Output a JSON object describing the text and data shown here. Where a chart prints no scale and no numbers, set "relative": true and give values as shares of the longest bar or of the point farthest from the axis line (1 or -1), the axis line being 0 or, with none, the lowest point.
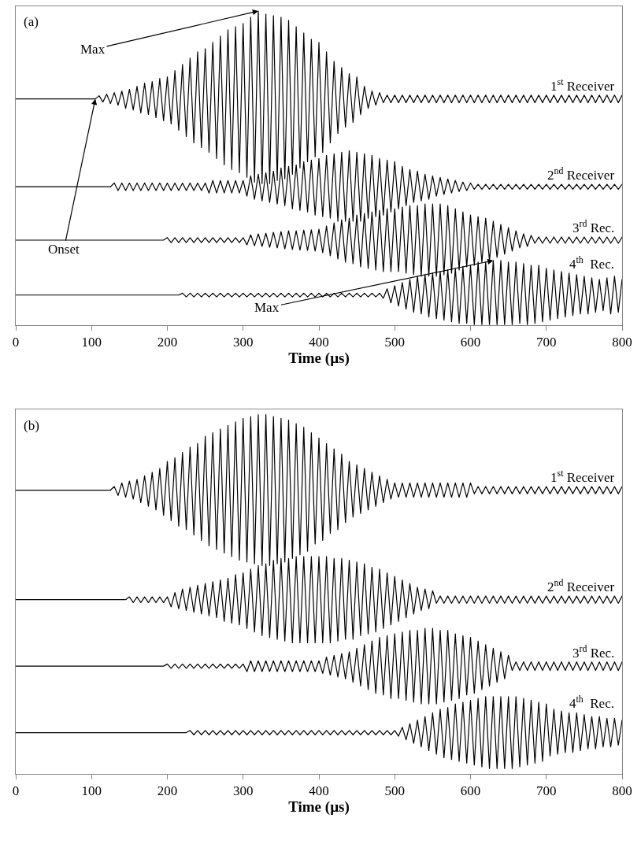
{
  "chart_data": [
    {
      "type": "line",
      "relative": true,
      "xlabel": "Time (µs)",
      "xlim": [
        0,
        800
      ],
      "xticks": [
        0,
        100,
        200,
        300,
        400,
        500,
        600,
        700,
        800
      ],
      "x": [
        0,
        100,
        105,
        110,
        115,
        120,
        125,
        130,
        135,
        140,
        145,
        150,
        155,
        160,
        165,
        170,
        175,
        180,
        185,
        190,
        195,
        200,
        205,
        210,
        215,
        220,
        225,
        230,
        235,
        240,
        245,
        250,
        255,
        260,
        265,
        270,
        275,
        280,
        285,
        290,
        295,
        300,
        305,
        310,
        315,
        320,
        325,
        330,
        335,
        340,
        345,
        350,
        355,
        360,
        365,
        370,
        375,
        380,
        385,
        390,
        395,
        400,
        405,
        410,
        415,
        420,
        425,
        430,
        435,
        440,
        445,
        450,
        455,
        460,
        465,
        470,
        475,
        480,
        485,
        490,
        495,
        500,
        505,
        510,
        515,
        520,
        525,
        530,
        535,
        540,
        545,
        550,
        555,
        560,
        565,
        570,
        575,
        580,
        585,
        590,
        595,
        600,
        605,
        610,
        615,
        620,
        625,
        630,
        635,
        640,
        645,
        650,
        655,
        660,
        665,
        670,
        675,
        680,
        685,
        690,
        695,
        700,
        705,
        710,
        715,
        720,
        725,
        730,
        735,
        740,
        745,
        750,
        755,
        760,
        765,
        770,
        775,
        780,
        785,
        790,
        795,
        800
      ],
      "annotations": [
        "(a)",
        {
          "text": "Max",
          "x": 320,
          "y": 1.0
        },
        {
          "text": "Onset",
          "x": 105,
          "y": 0.72
        },
        {
          "text": "Max",
          "x": 630,
          "y": 0.205
        }
      ],
      "series": [
        {
          "name": "1$^{st}$ Receiver",
          "color": "#000000",
          "values": [
            0.72,
            0.72,
            0.72,
            0.73,
            0.71,
            0.735,
            0.705,
            0.74,
            0.7,
            0.745,
            0.69,
            0.75,
            0.685,
            0.76,
            0.675,
            0.77,
            0.67,
            0.775,
            0.66,
            0.785,
            0.65,
            0.79,
            0.64,
            0.81,
            0.62,
            0.83,
            0.6,
            0.85,
            0.58,
            0.87,
            0.565,
            0.88,
            0.55,
            0.9,
            0.53,
            0.92,
            0.51,
            0.94,
            0.495,
            0.95,
            0.485,
            0.96,
            0.47,
            0.98,
            0.455,
            1.0,
            0.45,
            0.99,
            0.45,
            0.985,
            0.46,
            0.98,
            0.465,
            0.97,
            0.48,
            0.95,
            0.5,
            0.93,
            0.52,
            0.91,
            0.535,
            0.9,
            0.55,
            0.87,
            0.58,
            0.84,
            0.61,
            0.82,
            0.63,
            0.8,
            0.645,
            0.79,
            0.67,
            0.76,
            0.69,
            0.745,
            0.7,
            0.74,
            0.708,
            0.732,
            0.708,
            0.732,
            0.708,
            0.732,
            0.708,
            0.732,
            0.708,
            0.732,
            0.708,
            0.732,
            0.708,
            0.732,
            0.708,
            0.732,
            0.708,
            0.732,
            0.708,
            0.732,
            0.708,
            0.732,
            0.708,
            0.732,
            0.708,
            0.732,
            0.708,
            0.732,
            0.708,
            0.732,
            0.708,
            0.732,
            0.708,
            0.732,
            0.708,
            0.732,
            0.708,
            0.732,
            0.708,
            0.732,
            0.708,
            0.732,
            0.708,
            0.732,
            0.708,
            0.732,
            0.708,
            0.732,
            0.708,
            0.732,
            0.708,
            0.732,
            0.708,
            0.732,
            0.708,
            0.732,
            0.708,
            0.732,
            0.708,
            0.732,
            0.708,
            0.732,
            0.708,
            0.732
          ]
        },
        {
          "name": "2$^{nd}$ Receiver",
          "color": "#000000",
          "values": [
            0.44,
            0.44,
            0.44,
            0.44,
            0.44,
            0.44,
            0.44,
            0.452,
            0.428,
            0.452,
            0.428,
            0.452,
            0.428,
            0.452,
            0.428,
            0.452,
            0.428,
            0.452,
            0.428,
            0.452,
            0.428,
            0.452,
            0.428,
            0.452,
            0.428,
            0.452,
            0.428,
            0.452,
            0.428,
            0.452,
            0.428,
            0.452,
            0.42,
            0.46,
            0.42,
            0.46,
            0.42,
            0.46,
            0.42,
            0.46,
            0.42,
            0.46,
            0.41,
            0.475,
            0.4,
            0.48,
            0.395,
            0.485,
            0.39,
            0.49,
            0.385,
            0.5,
            0.38,
            0.505,
            0.37,
            0.51,
            0.365,
            0.52,
            0.36,
            0.525,
            0.35,
            0.53,
            0.345,
            0.54,
            0.34,
            0.545,
            0.33,
            0.55,
            0.33,
            0.555,
            0.33,
            0.55,
            0.33,
            0.545,
            0.34,
            0.54,
            0.345,
            0.53,
            0.35,
            0.525,
            0.36,
            0.52,
            0.37,
            0.505,
            0.38,
            0.495,
            0.39,
            0.49,
            0.395,
            0.48,
            0.4,
            0.475,
            0.41,
            0.47,
            0.415,
            0.465,
            0.42,
            0.46,
            0.425,
            0.455,
            0.428,
            0.452,
            0.432,
            0.448,
            0.432,
            0.448,
            0.432,
            0.448,
            0.432,
            0.448,
            0.432,
            0.448,
            0.432,
            0.448,
            0.432,
            0.448,
            0.432,
            0.448,
            0.432,
            0.448,
            0.432,
            0.448,
            0.432,
            0.448,
            0.432,
            0.448,
            0.432,
            0.448,
            0.432,
            0.448,
            0.432,
            0.448,
            0.432,
            0.448,
            0.432,
            0.448,
            0.432,
            0.448,
            0.432,
            0.448,
            0.432,
            0.448
          ]
        },
        {
          "name": "3$^{rd}$ Rec.",
          "color": "#000000",
          "values": [
            0.27,
            0.27,
            0.27,
            0.27,
            0.27,
            0.27,
            0.27,
            0.27,
            0.27,
            0.27,
            0.27,
            0.27,
            0.27,
            0.27,
            0.27,
            0.27,
            0.27,
            0.27,
            0.27,
            0.27,
            0.27,
            0.278,
            0.262,
            0.278,
            0.262,
            0.278,
            0.262,
            0.278,
            0.262,
            0.278,
            0.262,
            0.278,
            0.262,
            0.278,
            0.262,
            0.278,
            0.262,
            0.278,
            0.262,
            0.278,
            0.262,
            0.278,
            0.255,
            0.287,
            0.252,
            0.29,
            0.25,
            0.292,
            0.247,
            0.295,
            0.245,
            0.297,
            0.242,
            0.3,
            0.24,
            0.3,
            0.238,
            0.302,
            0.237,
            0.303,
            0.235,
            0.305,
            0.23,
            0.315,
            0.22,
            0.325,
            0.21,
            0.335,
            0.2,
            0.34,
            0.195,
            0.35,
            0.185,
            0.355,
            0.18,
            0.36,
            0.175,
            0.365,
            0.17,
            0.37,
            0.17,
            0.37,
            0.17,
            0.375,
            0.165,
            0.38,
            0.16,
            0.38,
            0.155,
            0.385,
            0.155,
            0.385,
            0.155,
            0.385,
            0.16,
            0.38,
            0.165,
            0.37,
            0.175,
            0.36,
            0.185,
            0.35,
            0.19,
            0.345,
            0.2,
            0.34,
            0.205,
            0.33,
            0.215,
            0.32,
            0.225,
            0.31,
            0.235,
            0.3,
            0.245,
            0.29,
            0.25,
            0.285,
            0.26,
            0.28,
            0.26,
            0.28,
            0.26,
            0.28,
            0.26,
            0.28,
            0.26,
            0.28,
            0.26,
            0.28,
            0.26,
            0.28,
            0.26,
            0.28,
            0.26,
            0.28,
            0.26,
            0.28,
            0.26,
            0.28,
            0.26,
            0.28
          ]
        },
        {
          "name": "4$^{th}$  Rec.",
          "color": "#000000",
          "values": [
            0.095,
            0.095,
            0.095,
            0.095,
            0.095,
            0.095,
            0.095,
            0.095,
            0.095,
            0.095,
            0.095,
            0.095,
            0.095,
            0.095,
            0.095,
            0.095,
            0.095,
            0.095,
            0.095,
            0.095,
            0.095,
            0.095,
            0.095,
            0.095,
            0.095,
            0.101,
            0.089,
            0.101,
            0.089,
            0.101,
            0.089,
            0.101,
            0.089,
            0.101,
            0.089,
            0.101,
            0.089,
            0.101,
            0.089,
            0.101,
            0.089,
            0.101,
            0.089,
            0.101,
            0.089,
            0.101,
            0.089,
            0.101,
            0.089,
            0.101,
            0.089,
            0.101,
            0.089,
            0.101,
            0.089,
            0.101,
            0.089,
            0.101,
            0.089,
            0.101,
            0.089,
            0.101,
            0.089,
            0.101,
            0.089,
            0.101,
            0.089,
            0.101,
            0.089,
            0.101,
            0.089,
            0.101,
            0.089,
            0.101,
            0.089,
            0.101,
            0.089,
            0.101,
            0.085,
            0.115,
            0.07,
            0.125,
            0.06,
            0.135,
            0.05,
            0.145,
            0.04,
            0.155,
            0.035,
            0.16,
            0.025,
            0.165,
            0.02,
            0.17,
            0.015,
            0.175,
            0.01,
            0.18,
            0.005,
            0.185,
            0.005,
            0.19,
            0.0,
            0.2,
            0.0,
            0.2,
            0.0,
            0.205,
            0.0,
            0.205,
            0.0,
            0.2,
            0.0,
            0.2,
            0.005,
            0.195,
            0.0,
            0.19,
            0.005,
            0.19,
            0.01,
            0.18,
            0.015,
            0.175,
            0.02,
            0.17,
            0.025,
            0.165,
            0.03,
            0.16,
            0.035,
            0.155,
            0.035,
            0.15,
            0.04,
            0.145,
            0.045,
            0.15,
            0.035,
            0.155,
            0.04,
            0.145
          ]
        }
      ]
    },
    {
      "type": "line",
      "relative": true,
      "xlabel": "Time (µs)",
      "xlim": [
        0,
        800
      ],
      "xticks": [
        0,
        100,
        200,
        300,
        400,
        500,
        600,
        700,
        800
      ],
      "x": [
        0,
        100,
        105,
        110,
        115,
        120,
        125,
        130,
        135,
        140,
        145,
        150,
        155,
        160,
        165,
        170,
        175,
        180,
        185,
        190,
        195,
        200,
        205,
        210,
        215,
        220,
        225,
        230,
        235,
        240,
        245,
        250,
        255,
        260,
        265,
        270,
        275,
        280,
        285,
        290,
        295,
        300,
        305,
        310,
        315,
        320,
        325,
        330,
        335,
        340,
        345,
        350,
        355,
        360,
        365,
        370,
        375,
        380,
        385,
        390,
        395,
        400,
        405,
        410,
        415,
        420,
        425,
        430,
        435,
        440,
        445,
        450,
        455,
        460,
        465,
        470,
        475,
        480,
        485,
        490,
        495,
        500,
        505,
        510,
        515,
        520,
        525,
        530,
        535,
        540,
        545,
        550,
        555,
        560,
        565,
        570,
        575,
        580,
        585,
        590,
        595,
        600,
        605,
        610,
        615,
        620,
        625,
        630,
        635,
        640,
        645,
        650,
        655,
        660,
        665,
        670,
        675,
        680,
        685,
        690,
        695,
        700,
        705,
        710,
        715,
        720,
        725,
        730,
        735,
        740,
        745,
        750,
        755,
        760,
        765,
        770,
        775,
        780,
        785,
        790,
        795,
        800
      ],
      "annotations": [
        "(b)"
      ],
      "series": [
        {
          "name": "1$^{st}$ Receiver",
          "color": "#000000",
          "values": [
            0.79,
            0.79,
            0.79,
            0.79,
            0.79,
            0.79,
            0.79,
            0.8,
            0.775,
            0.81,
            0.77,
            0.815,
            0.765,
            0.82,
            0.755,
            0.83,
            0.745,
            0.84,
            0.735,
            0.85,
            0.72,
            0.87,
            0.705,
            0.88,
            0.69,
            0.895,
            0.68,
            0.91,
            0.665,
            0.92,
            0.65,
            0.94,
            0.635,
            0.95,
            0.625,
            0.96,
            0.615,
            0.97,
            0.605,
            0.98,
            0.595,
            0.99,
            0.59,
            0.995,
            0.585,
            1.0,
            0.58,
            1.0,
            0.58,
            0.995,
            0.585,
            0.99,
            0.59,
            0.985,
            0.6,
            0.975,
            0.61,
            0.965,
            0.62,
            0.95,
            0.64,
            0.935,
            0.65,
            0.92,
            0.67,
            0.905,
            0.68,
            0.89,
            0.7,
            0.87,
            0.715,
            0.86,
            0.725,
            0.85,
            0.735,
            0.84,
            0.745,
            0.83,
            0.755,
            0.82,
            0.765,
            0.81,
            0.77,
            0.81,
            0.77,
            0.81,
            0.77,
            0.81,
            0.77,
            0.81,
            0.77,
            0.81,
            0.77,
            0.81,
            0.77,
            0.81,
            0.77,
            0.81,
            0.77,
            0.81,
            0.77,
            0.81,
            0.78,
            0.8,
            0.78,
            0.8,
            0.78,
            0.8,
            0.78,
            0.8,
            0.78,
            0.8,
            0.78,
            0.8,
            0.78,
            0.8,
            0.78,
            0.8,
            0.78,
            0.8,
            0.78,
            0.8,
            0.78,
            0.8,
            0.78,
            0.8,
            0.78,
            0.8,
            0.78,
            0.8,
            0.78,
            0.8,
            0.78,
            0.8,
            0.78,
            0.8,
            0.78,
            0.8,
            0.78,
            0.8,
            0.78,
            0.8
          ]
        },
        {
          "name": "2$^{nd}$ Receiver",
          "color": "#000000",
          "values": [
            0.485,
            0.485,
            0.485,
            0.485,
            0.485,
            0.485,
            0.485,
            0.485,
            0.485,
            0.485,
            0.485,
            0.493,
            0.477,
            0.493,
            0.477,
            0.493,
            0.477,
            0.493,
            0.477,
            0.493,
            0.477,
            0.493,
            0.465,
            0.505,
            0.46,
            0.515,
            0.455,
            0.52,
            0.45,
            0.525,
            0.445,
            0.53,
            0.44,
            0.535,
            0.435,
            0.54,
            0.425,
            0.545,
            0.42,
            0.555,
            0.415,
            0.56,
            0.405,
            0.57,
            0.395,
            0.58,
            0.385,
            0.585,
            0.38,
            0.595,
            0.375,
            0.6,
            0.37,
            0.6,
            0.365,
            0.605,
            0.365,
            0.605,
            0.365,
            0.605,
            0.365,
            0.605,
            0.365,
            0.605,
            0.365,
            0.6,
            0.37,
            0.6,
            0.375,
            0.595,
            0.375,
            0.59,
            0.385,
            0.585,
            0.39,
            0.575,
            0.395,
            0.57,
            0.405,
            0.56,
            0.415,
            0.55,
            0.425,
            0.54,
            0.435,
            0.53,
            0.445,
            0.52,
            0.455,
            0.515,
            0.46,
            0.51,
            0.475,
            0.495,
            0.475,
            0.495,
            0.475,
            0.495,
            0.475,
            0.495,
            0.475,
            0.495,
            0.475,
            0.495,
            0.475,
            0.495,
            0.475,
            0.495,
            0.475,
            0.495,
            0.475,
            0.495,
            0.475,
            0.495,
            0.475,
            0.495,
            0.475,
            0.495,
            0.475,
            0.495,
            0.475,
            0.495,
            0.475,
            0.495,
            0.475,
            0.495,
            0.475,
            0.495,
            0.475,
            0.495,
            0.475,
            0.495,
            0.475,
            0.495,
            0.475,
            0.495,
            0.475,
            0.495,
            0.475,
            0.495,
            0.475,
            0.495
          ]
        },
        {
          "name": "3$^{rd}$ Rec.",
          "color": "#000000",
          "values": [
            0.3,
            0.3,
            0.3,
            0.3,
            0.3,
            0.3,
            0.3,
            0.3,
            0.3,
            0.3,
            0.3,
            0.3,
            0.3,
            0.3,
            0.3,
            0.3,
            0.3,
            0.3,
            0.3,
            0.3,
            0.3,
            0.306,
            0.294,
            0.306,
            0.294,
            0.306,
            0.294,
            0.306,
            0.294,
            0.306,
            0.294,
            0.306,
            0.294,
            0.306,
            0.294,
            0.306,
            0.294,
            0.306,
            0.294,
            0.306,
            0.294,
            0.306,
            0.285,
            0.315,
            0.285,
            0.315,
            0.285,
            0.315,
            0.285,
            0.315,
            0.285,
            0.315,
            0.285,
            0.315,
            0.285,
            0.315,
            0.285,
            0.315,
            0.285,
            0.315,
            0.285,
            0.315,
            0.28,
            0.325,
            0.275,
            0.33,
            0.27,
            0.335,
            0.265,
            0.34,
            0.255,
            0.35,
            0.245,
            0.36,
            0.235,
            0.37,
            0.225,
            0.38,
            0.22,
            0.385,
            0.21,
            0.39,
            0.21,
            0.395,
            0.205,
            0.4,
            0.2,
            0.4,
            0.195,
            0.405,
            0.195,
            0.405,
            0.195,
            0.4,
            0.2,
            0.4,
            0.205,
            0.39,
            0.21,
            0.385,
            0.22,
            0.38,
            0.225,
            0.37,
            0.235,
            0.36,
            0.245,
            0.35,
            0.255,
            0.34,
            0.265,
            0.33,
            0.288,
            0.312,
            0.288,
            0.312,
            0.288,
            0.312,
            0.288,
            0.312,
            0.288,
            0.312,
            0.288,
            0.312,
            0.288,
            0.312,
            0.288,
            0.312,
            0.288,
            0.312,
            0.288,
            0.312,
            0.288,
            0.312,
            0.288,
            0.312,
            0.288,
            0.312,
            0.288,
            0.312,
            0.288,
            0.312
          ]
        },
        {
          "name": "4$^{th}$  Rec.",
          "color": "#000000",
          "values": [
            0.115,
            0.115,
            0.115,
            0.115,
            0.115,
            0.115,
            0.115,
            0.115,
            0.115,
            0.115,
            0.115,
            0.115,
            0.115,
            0.115,
            0.115,
            0.115,
            0.115,
            0.115,
            0.115,
            0.115,
            0.115,
            0.115,
            0.115,
            0.115,
            0.115,
            0.115,
            0.115,
            0.121,
            0.109,
            0.121,
            0.109,
            0.121,
            0.109,
            0.121,
            0.109,
            0.121,
            0.109,
            0.121,
            0.109,
            0.121,
            0.109,
            0.121,
            0.109,
            0.121,
            0.109,
            0.121,
            0.109,
            0.121,
            0.109,
            0.121,
            0.109,
            0.121,
            0.109,
            0.121,
            0.109,
            0.121,
            0.109,
            0.121,
            0.109,
            0.121,
            0.109,
            0.121,
            0.109,
            0.121,
            0.109,
            0.121,
            0.109,
            0.121,
            0.109,
            0.121,
            0.109,
            0.121,
            0.109,
            0.121,
            0.109,
            0.121,
            0.109,
            0.121,
            0.109,
            0.121,
            0.109,
            0.121,
            0.105,
            0.13,
            0.095,
            0.14,
            0.085,
            0.15,
            0.075,
            0.16,
            0.065,
            0.17,
            0.055,
            0.18,
            0.045,
            0.185,
            0.04,
            0.195,
            0.035,
            0.2,
            0.03,
            0.205,
            0.025,
            0.21,
            0.02,
            0.215,
            0.015,
            0.215,
            0.015,
            0.215,
            0.015,
            0.215,
            0.015,
            0.215,
            0.02,
            0.21,
            0.025,
            0.205,
            0.03,
            0.2,
            0.035,
            0.195,
            0.05,
            0.18,
            0.055,
            0.175,
            0.06,
            0.17,
            0.06,
            0.17,
            0.065,
            0.165,
            0.07,
            0.16,
            0.07,
            0.16,
            0.075,
            0.155,
            0.075,
            0.155,
            0.08,
            0.15
          ]
        }
      ]
    }
  ]
}
